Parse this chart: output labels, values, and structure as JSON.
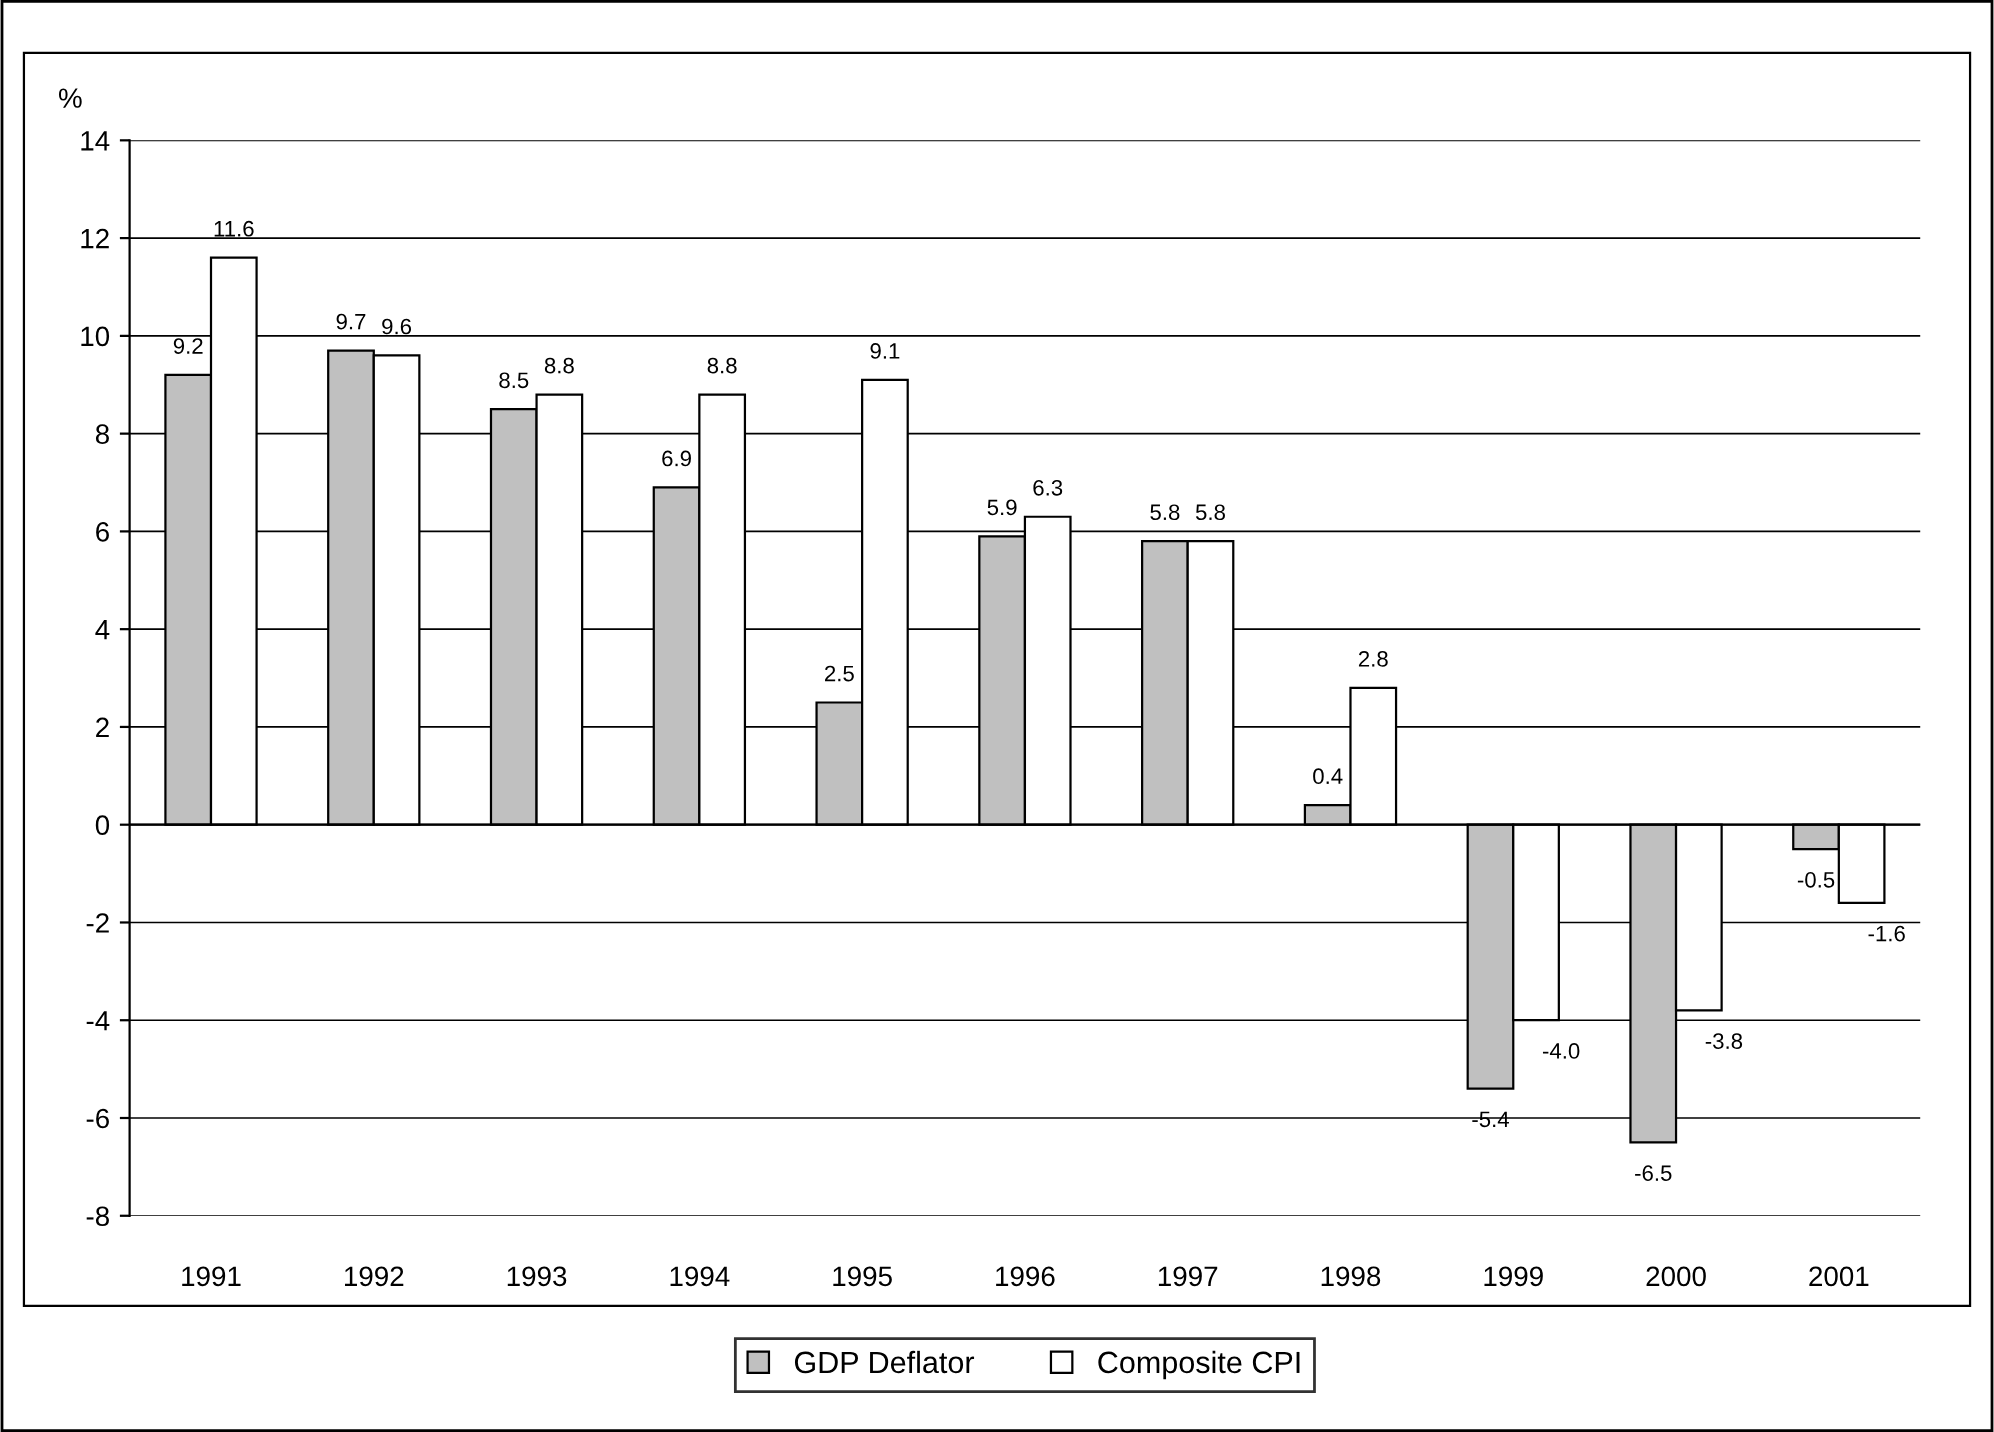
{
  "chart_data": {
    "type": "bar",
    "ylabel": "%",
    "categories": [
      "1991",
      "1992",
      "1993",
      "1994",
      "1995",
      "1996",
      "1997",
      "1998",
      "1999",
      "2000",
      "2001"
    ],
    "series": [
      {
        "name": "GDP Deflator",
        "color": "#c0c0c0",
        "values": [
          9.2,
          9.7,
          8.5,
          6.9,
          2.5,
          5.9,
          5.8,
          0.4,
          -5.4,
          -6.5,
          -0.5
        ],
        "value_labels": [
          "9.2",
          "9.7",
          "8.5",
          "6.9",
          "2.5",
          "5.9",
          "5.8",
          "0.4",
          "-5.4",
          "-6.5",
          "-0.5"
        ]
      },
      {
        "name": "Composite CPI",
        "color": "#ffffff",
        "values": [
          11.6,
          9.6,
          8.8,
          8.8,
          9.1,
          6.3,
          5.8,
          2.8,
          -4.0,
          -3.8,
          -1.6
        ],
        "value_labels": [
          "11.6",
          "9.6",
          "8.8",
          "8.8",
          "9.1",
          "6.3",
          "5.8",
          "2.8",
          "-4.0",
          "-3.8",
          "-1.6"
        ]
      }
    ],
    "ylim": [
      -8,
      14
    ],
    "yticks": [
      -8,
      -6,
      -4,
      -2,
      0,
      2,
      4,
      6,
      8,
      10,
      12,
      14
    ],
    "grid": "y",
    "legend": "bottom"
  }
}
